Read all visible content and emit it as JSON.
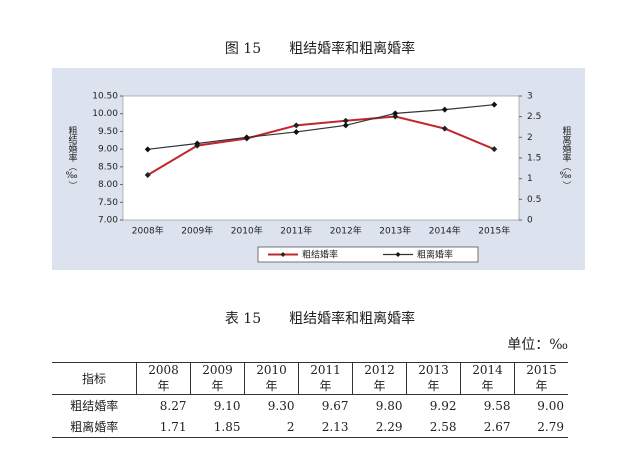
{
  "figure_title": "图 15　　粗结婚率和粗离婚率",
  "chart_data": {
    "type": "line",
    "categories": [
      "2008年",
      "2009年",
      "2010年",
      "2011年",
      "2012年",
      "2013年",
      "2014年",
      "2015年"
    ],
    "y_label": "粗结婚率（‰）",
    "y2_label": "粗离婚率（‰）",
    "ylim": [
      7,
      10.5
    ],
    "yticks": [
      {
        "value": 7,
        "label": "7.00"
      },
      {
        "value": 7.5,
        "label": "7.50"
      },
      {
        "value": 8,
        "label": "8.00"
      },
      {
        "value": 8.5,
        "label": "8.50"
      },
      {
        "value": 9,
        "label": "9.00"
      },
      {
        "value": 9.5,
        "label": "9.50"
      },
      {
        "value": 10,
        "label": "10.00"
      },
      {
        "value": 10.5,
        "label": "10.50"
      }
    ],
    "y2lim": [
      0,
      3
    ],
    "y2ticks": [
      0,
      0.5,
      1,
      1.5,
      2,
      2.5,
      3
    ],
    "series": [
      {
        "name": "粗结婚率",
        "color": "#c0282d",
        "marker_color": "#222222",
        "values": [
          8.27,
          9.1,
          9.3,
          9.67,
          9.8,
          9.92,
          9.58,
          9.0
        ]
      },
      {
        "name": "粗离婚率",
        "color": "#333333",
        "marker_color": "#111111",
        "axis": "y2",
        "values": [
          1.71,
          1.85,
          2,
          2.13,
          2.29,
          2.58,
          2.67,
          2.79
        ]
      }
    ]
  },
  "table_title": "表 15　　粗结婚率和粗离婚率",
  "unit": "单位：‰",
  "table": {
    "header": [
      "指标",
      "2008 年",
      "2009 年",
      "2010 年",
      "2011 年",
      "2012 年",
      "2013 年",
      "2014 年",
      "2015 年"
    ],
    "rows": [
      [
        "粗结婚率",
        "8.27",
        "9.10",
        "9.30",
        "9.67",
        "9.80",
        "9.92",
        "9.58",
        "9.00"
      ],
      [
        "粗离婚率",
        "1.71",
        "1.85",
        "2",
        "2.13",
        "2.29",
        "2.58",
        "2.67",
        "2.79"
      ]
    ]
  }
}
